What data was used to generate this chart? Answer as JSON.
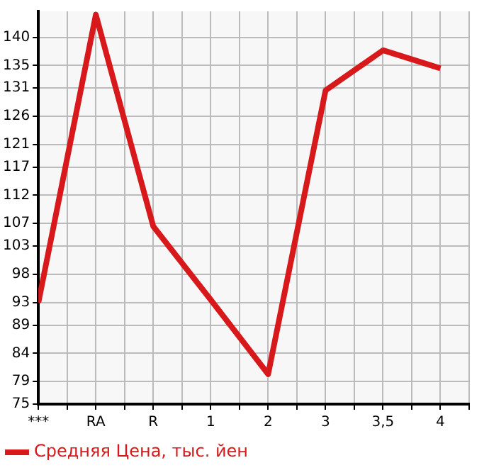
{
  "chart_data": {
    "type": "line",
    "categories": [
      "***",
      "RA",
      "R",
      "1",
      "2",
      "3",
      "3,5",
      "4"
    ],
    "series": [
      {
        "name": "Средняя Цена, тыс. йен",
        "color": "#d7191c",
        "values": [
          93,
          144,
          106.5,
          93.5,
          80.3,
          130.6,
          137.7,
          134.5
        ]
      }
    ],
    "ylim": [
      75,
      144.6
    ],
    "yticks": [
      75,
      79,
      84,
      89,
      93,
      98,
      103,
      107,
      112,
      117,
      121,
      126,
      131,
      135,
      140
    ],
    "grid": true,
    "legend": "bottom left",
    "marker": "none",
    "line_style": "solid"
  }
}
